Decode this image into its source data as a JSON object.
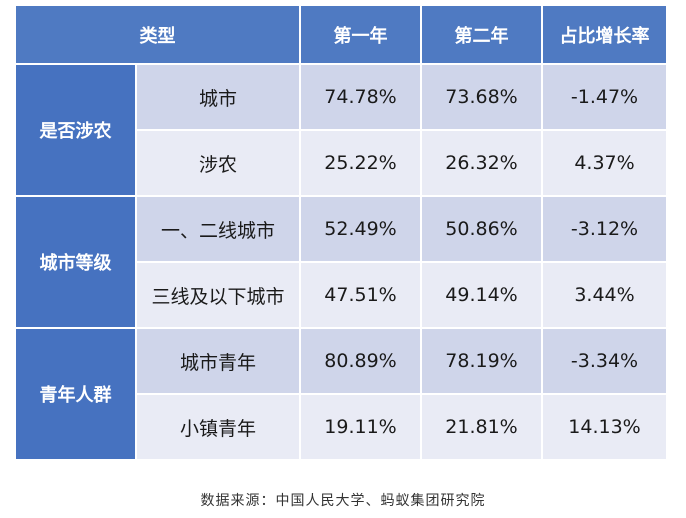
{
  "header": {
    "type": "类型",
    "year1": "第一年",
    "year2": "第二年",
    "growth": "占比增长率"
  },
  "groups": [
    {
      "name": "是否涉农",
      "rows": [
        {
          "label": "城市",
          "y1": "74.78%",
          "y2": "73.68%",
          "growth": "-1.47%"
        },
        {
          "label": "涉农",
          "y1": "25.22%",
          "y2": "26.32%",
          "growth": "4.37%"
        }
      ]
    },
    {
      "name": "城市等级",
      "rows": [
        {
          "label": "一、二线城市",
          "y1": "52.49%",
          "y2": "50.86%",
          "growth": "-3.12%"
        },
        {
          "label": "三线及以下城市",
          "y1": "47.51%",
          "y2": "49.14%",
          "growth": "3.44%"
        }
      ]
    },
    {
      "name": "青年人群",
      "rows": [
        {
          "label": "城市青年",
          "y1": "80.89%",
          "y2": "78.19%",
          "growth": "-3.34%"
        },
        {
          "label": "小镇青年",
          "y1": "19.11%",
          "y2": "21.81%",
          "growth": "14.13%"
        }
      ]
    }
  ],
  "source": "数据来源：中国人民大学、蚂蚁集团研究院",
  "colors": {
    "header_bg": "#4f7ac2",
    "group_bg": "#4672c0",
    "row_shade_dark": "#cfd5ea",
    "row_shade_light": "#e9ebf5"
  }
}
